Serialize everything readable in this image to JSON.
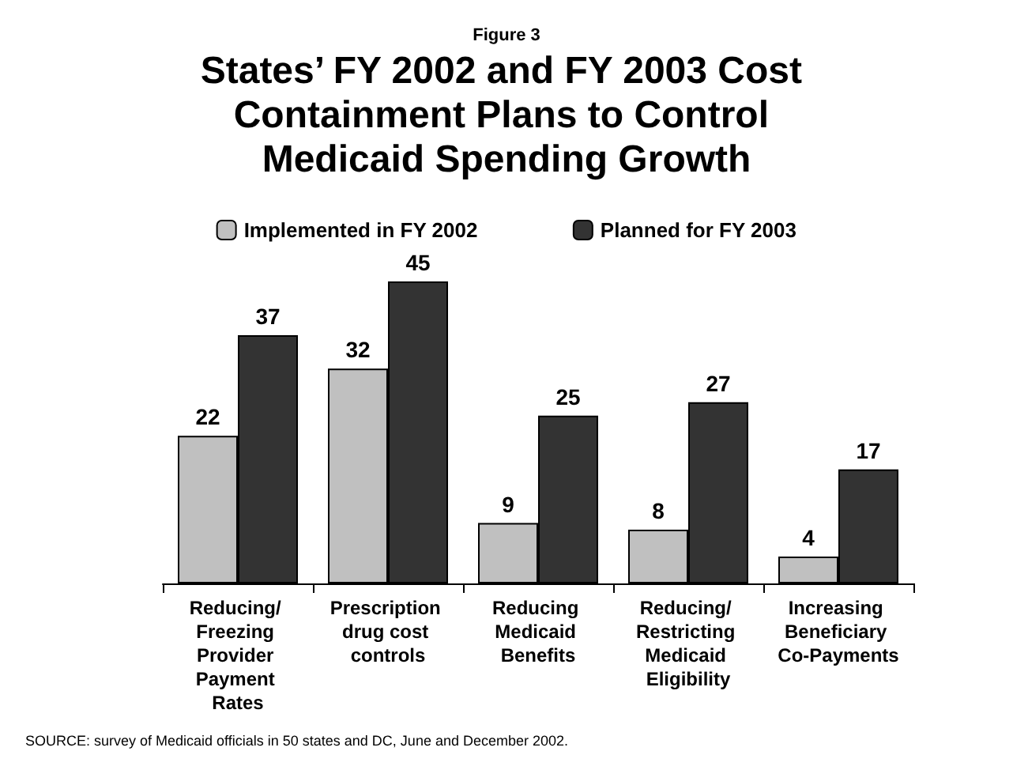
{
  "chart_data": {
    "type": "bar",
    "subtitle": "Figure 3",
    "title": "States’ FY 2002 and FY 2003 Cost Containment Plans to Control Medicaid Spending Growth",
    "categories": [
      "Reducing/ Freezing Provider Payment Rates",
      "Prescription drug cost controls",
      "Reducing Medicaid Benefits",
      "Reducing/ Restricting Medicaid Eligibility",
      "Increasing Beneficiary Co-Payments"
    ],
    "series": [
      {
        "name": "Implemented in FY 2002",
        "color": "#c0c0c0",
        "values": [
          22,
          32,
          9,
          8,
          4
        ]
      },
      {
        "name": "Planned for FY 2003",
        "color": "#333333",
        "values": [
          37,
          45,
          25,
          27,
          17
        ]
      }
    ],
    "data_labels": true,
    "legend": "top",
    "grid": false,
    "annotations": [
      "SOURCE: survey of Medicaid officials in 50 states and DC, June and December 2002."
    ]
  }
}
